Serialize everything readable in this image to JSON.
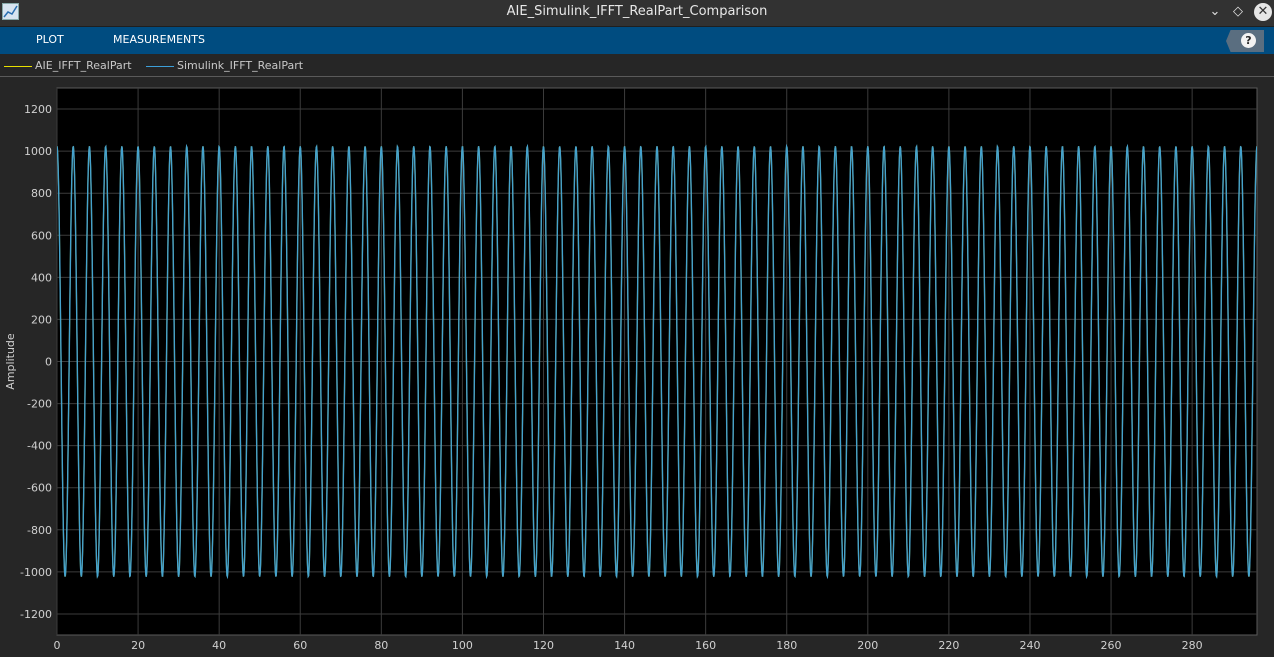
{
  "window": {
    "title": "AIE_Simulink_IFFT_RealPart_Comparison",
    "icon": "scope-icon"
  },
  "toolstrip": {
    "tabs": [
      {
        "label": "PLOT"
      },
      {
        "label": "MEASUREMENTS"
      }
    ],
    "help_label": "?"
  },
  "colors": {
    "background": "#262626",
    "plot_bg": "#000000",
    "grid": "#3c3c3c",
    "toolstrip": "#004c80",
    "series_aie": "#e8e000",
    "series_simulink": "#3d9fd8"
  },
  "chart_data": {
    "type": "line",
    "title": "",
    "xlabel": "",
    "ylabel": "Amplitude",
    "xlim": [
      0,
      296
    ],
    "ylim": [
      -1300,
      1300
    ],
    "xticks": [
      0,
      20,
      40,
      60,
      80,
      100,
      120,
      140,
      160,
      180,
      200,
      220,
      240,
      260,
      280
    ],
    "yticks": [
      -1200,
      -1000,
      -800,
      -600,
      -400,
      -200,
      0,
      200,
      400,
      600,
      800,
      1000,
      1200
    ],
    "grid": true,
    "legend": "top-left",
    "series": [
      {
        "name": "AIE_IFFT_RealPart",
        "color": "#e8e000",
        "waveform": "sine",
        "amplitude": 1023,
        "period": 4,
        "phase_deg": 90,
        "x_start": 0,
        "x_end": 296
      },
      {
        "name": "Simulink_IFFT_RealPart",
        "color": "#3d9fd8",
        "waveform": "sine",
        "amplitude": 1023,
        "period": 4,
        "phase_deg": 90,
        "x_start": 0,
        "x_end": 296
      }
    ]
  }
}
